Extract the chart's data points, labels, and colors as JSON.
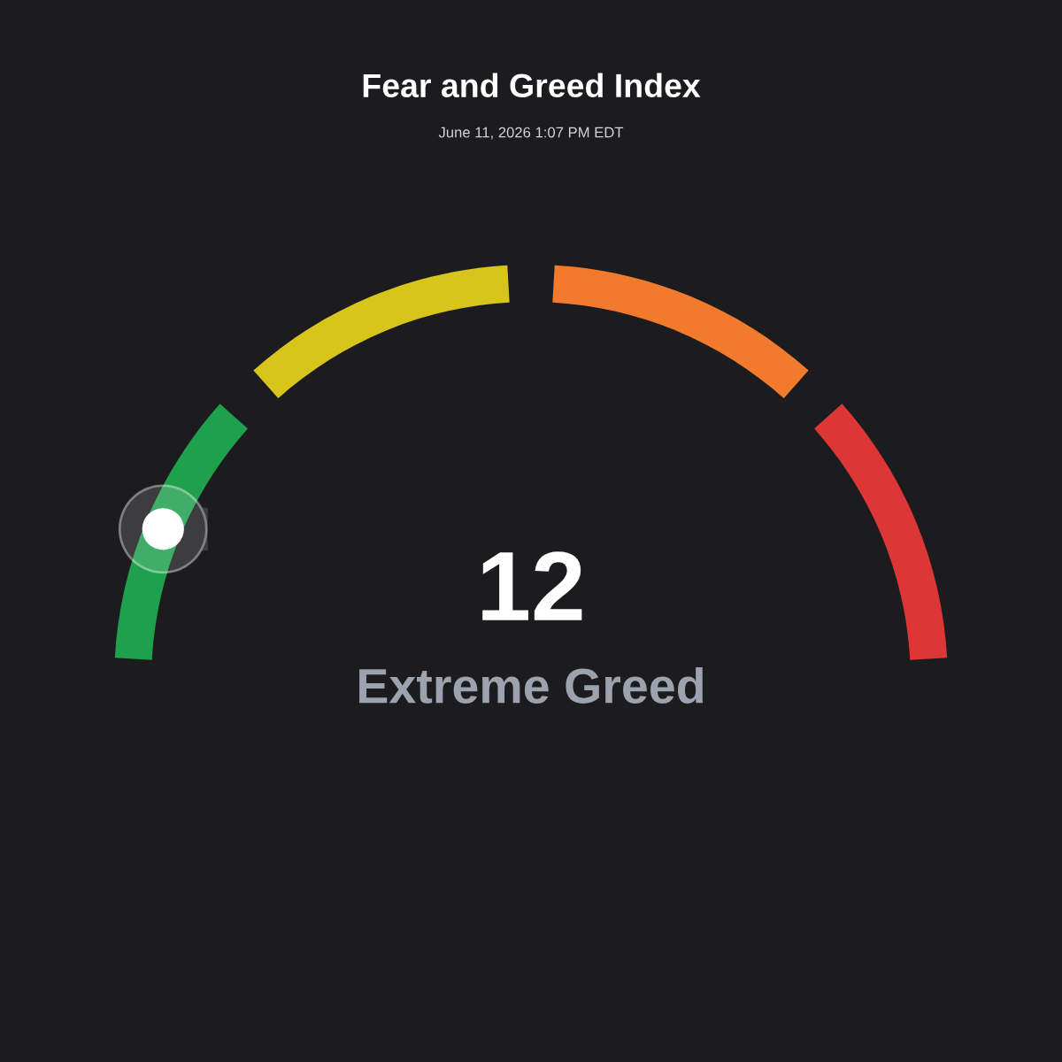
{
  "chart_data": {
    "type": "donut",
    "title": "Fear and Greed Index",
    "subtitle": "June 11, 2026 1:07 PM EDT",
    "categories": [
      null,
      null,
      null,
      null
    ],
    "values": [
      25,
      25,
      25,
      25
    ],
    "colors": [
      "#1fa04c",
      "#d8c51c",
      "#f27a2c",
      "#dc3636"
    ],
    "annotations": [
      "12",
      "Extreme Greed"
    ]
  }
}
